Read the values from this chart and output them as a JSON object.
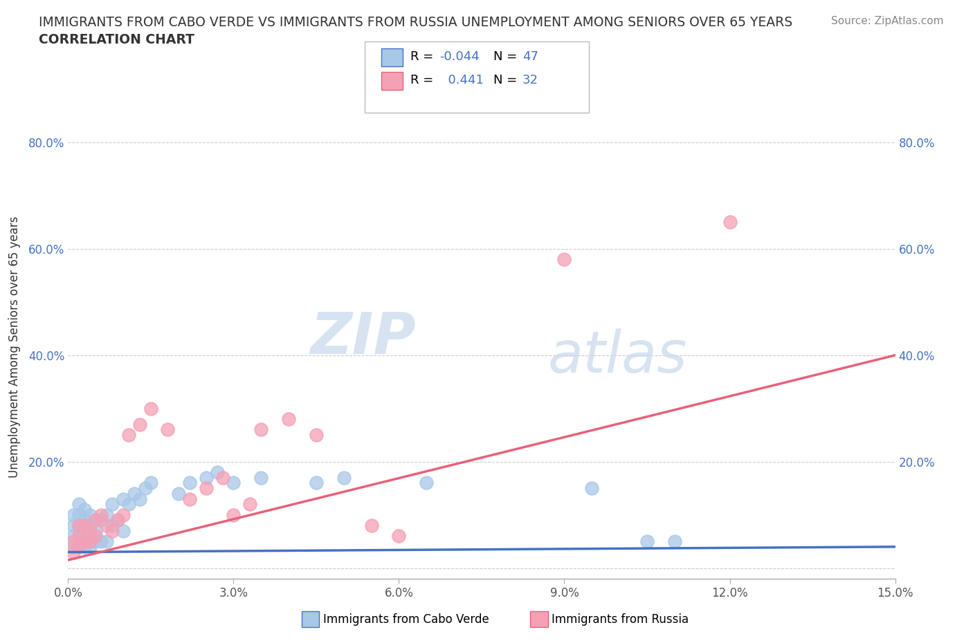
{
  "title_line1": "IMMIGRANTS FROM CABO VERDE VS IMMIGRANTS FROM RUSSIA UNEMPLOYMENT AMONG SENIORS OVER 65 YEARS",
  "title_line2": "CORRELATION CHART",
  "source_text": "Source: ZipAtlas.com",
  "ylabel": "Unemployment Among Seniors over 65 years",
  "xmin": 0.0,
  "xmax": 0.15,
  "ymin": -0.02,
  "ymax": 0.85,
  "xticks": [
    0.0,
    0.03,
    0.06,
    0.09,
    0.12,
    0.15
  ],
  "yticks": [
    0.0,
    0.2,
    0.4,
    0.6,
    0.8
  ],
  "ytick_labels": [
    "",
    "20.0%",
    "40.0%",
    "60.0%",
    "80.0%"
  ],
  "xtick_labels": [
    "0.0%",
    "3.0%",
    "6.0%",
    "9.0%",
    "12.0%",
    "15.0%"
  ],
  "cabo_verde_color": "#a8c8e8",
  "russia_color": "#f4a0b5",
  "cabo_verde_line_color": "#4472c4",
  "russia_line_color": "#e8607a",
  "cabo_verde_R": -0.044,
  "cabo_verde_N": 47,
  "russia_R": 0.441,
  "russia_N": 32,
  "watermark_zip": "ZIP",
  "watermark_atlas": "atlas",
  "cabo_verde_x": [
    0.001,
    0.001,
    0.001,
    0.001,
    0.002,
    0.002,
    0.002,
    0.002,
    0.002,
    0.003,
    0.003,
    0.003,
    0.003,
    0.003,
    0.004,
    0.004,
    0.004,
    0.004,
    0.005,
    0.005,
    0.005,
    0.006,
    0.006,
    0.007,
    0.007,
    0.008,
    0.008,
    0.009,
    0.01,
    0.01,
    0.011,
    0.012,
    0.013,
    0.014,
    0.015,
    0.02,
    0.022,
    0.025,
    0.027,
    0.03,
    0.035,
    0.045,
    0.05,
    0.065,
    0.095,
    0.105,
    0.11
  ],
  "cabo_verde_y": [
    0.04,
    0.06,
    0.08,
    0.1,
    0.04,
    0.06,
    0.08,
    0.1,
    0.12,
    0.04,
    0.05,
    0.07,
    0.09,
    0.11,
    0.04,
    0.06,
    0.08,
    0.1,
    0.05,
    0.07,
    0.09,
    0.05,
    0.09,
    0.05,
    0.1,
    0.08,
    0.12,
    0.09,
    0.07,
    0.13,
    0.12,
    0.14,
    0.13,
    0.15,
    0.16,
    0.14,
    0.16,
    0.17,
    0.18,
    0.16,
    0.17,
    0.16,
    0.17,
    0.16,
    0.15,
    0.05,
    0.05
  ],
  "russia_x": [
    0.001,
    0.001,
    0.002,
    0.002,
    0.002,
    0.003,
    0.003,
    0.004,
    0.004,
    0.005,
    0.005,
    0.006,
    0.007,
    0.008,
    0.009,
    0.01,
    0.011,
    0.013,
    0.015,
    0.018,
    0.022,
    0.025,
    0.028,
    0.03,
    0.033,
    0.035,
    0.04,
    0.045,
    0.055,
    0.06,
    0.09,
    0.12
  ],
  "russia_y": [
    0.03,
    0.05,
    0.04,
    0.06,
    0.08,
    0.05,
    0.08,
    0.05,
    0.07,
    0.06,
    0.09,
    0.1,
    0.08,
    0.07,
    0.09,
    0.1,
    0.25,
    0.27,
    0.3,
    0.26,
    0.13,
    0.15,
    0.17,
    0.1,
    0.12,
    0.26,
    0.28,
    0.25,
    0.08,
    0.06,
    0.58,
    0.65
  ],
  "background_color": "#ffffff",
  "grid_color": "#cccccc"
}
